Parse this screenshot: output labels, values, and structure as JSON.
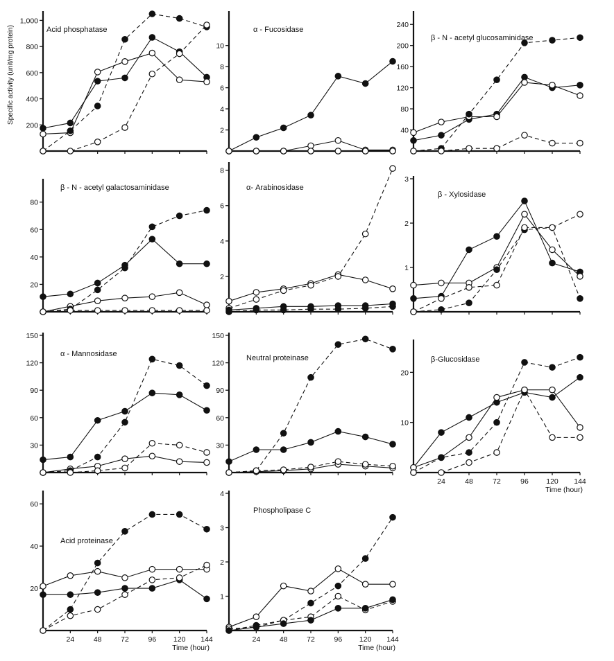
{
  "figure": {
    "ylabel": "Specific activity (unit/mg protein)",
    "xlabel": "Time (hour)"
  },
  "chart_data": [
    {
      "type": "line",
      "title": "Acid phosphatase",
      "x": [
        0,
        24,
        48,
        72,
        96,
        120,
        144
      ],
      "ylim": [
        0,
        1050
      ],
      "yticks": [
        200,
        400,
        600,
        800,
        1000
      ],
      "yticklabels": [
        "200",
        "400",
        "600",
        "800",
        "1,000"
      ],
      "xticks": [],
      "xticklabels": [],
      "series": [
        {
          "marker": "filled",
          "dash": false,
          "values": [
            175,
            215,
            535,
            560,
            870,
            760,
            565
          ]
        },
        {
          "marker": "open",
          "dash": false,
          "values": [
            130,
            140,
            605,
            685,
            750,
            545,
            530
          ]
        },
        {
          "marker": "filled",
          "dash": true,
          "values": [
            0,
            155,
            345,
            855,
            1050,
            1015,
            950
          ]
        },
        {
          "marker": "open",
          "dash": true,
          "values": [
            0,
            0,
            70,
            180,
            590,
            745,
            965
          ]
        }
      ]
    },
    {
      "type": "line",
      "title": "α - Fucosidase",
      "x": [
        0,
        24,
        48,
        72,
        96,
        120,
        144
      ],
      "ylim": [
        0,
        13
      ],
      "yticks": [
        2,
        4,
        6,
        8,
        10
      ],
      "yticklabels": [
        "2",
        "4",
        "6",
        "8",
        "10"
      ],
      "xticks": [],
      "xticklabels": [],
      "series": [
        {
          "marker": "filled",
          "dash": false,
          "values": [
            0,
            1.3,
            2.2,
            3.4,
            7.1,
            6.4,
            8.5
          ]
        },
        {
          "marker": "open",
          "dash": false,
          "values": [
            0,
            0,
            0,
            0.5,
            1.0,
            0.1,
            0.1
          ]
        },
        {
          "marker": "filled",
          "dash": true,
          "values": [
            0,
            0,
            0,
            0,
            0,
            0,
            0
          ]
        },
        {
          "marker": "open",
          "dash": true,
          "values": [
            0,
            0,
            0,
            0,
            0,
            0,
            0
          ]
        }
      ]
    },
    {
      "type": "line",
      "title": "β - N - acetyl glucosaminidase",
      "x": [
        0,
        24,
        48,
        72,
        96,
        120,
        144
      ],
      "ylim": [
        0,
        260
      ],
      "yticks": [
        40,
        80,
        120,
        160,
        200,
        240
      ],
      "yticklabels": [
        "40",
        "80",
        "120",
        "160",
        "200",
        "240"
      ],
      "xticks": [],
      "xticklabels": [],
      "series": [
        {
          "marker": "filled",
          "dash": false,
          "values": [
            20,
            30,
            60,
            70,
            140,
            120,
            125
          ]
        },
        {
          "marker": "open",
          "dash": false,
          "values": [
            35,
            55,
            65,
            65,
            130,
            125,
            105
          ]
        },
        {
          "marker": "filled",
          "dash": true,
          "values": [
            0,
            5,
            70,
            135,
            205,
            210,
            215
          ]
        },
        {
          "marker": "open",
          "dash": true,
          "values": [
            0,
            0,
            5,
            5,
            30,
            15,
            15
          ]
        }
      ]
    },
    {
      "type": "line",
      "title": "β - N - acetyl galactosaminidase",
      "x": [
        0,
        24,
        48,
        72,
        96,
        120,
        144
      ],
      "ylim": [
        0,
        95
      ],
      "yticks": [
        20,
        40,
        60,
        80
      ],
      "yticklabels": [
        "20",
        "40",
        "60",
        "80"
      ],
      "xticks": [],
      "xticklabels": [],
      "series": [
        {
          "marker": "filled",
          "dash": false,
          "values": [
            11,
            13,
            21,
            34,
            53,
            35,
            35
          ]
        },
        {
          "marker": "open",
          "dash": false,
          "values": [
            0,
            4,
            8,
            10,
            11,
            14,
            5
          ]
        },
        {
          "marker": "filled",
          "dash": true,
          "values": [
            0,
            2,
            16,
            32,
            62,
            70,
            74
          ]
        },
        {
          "marker": "open",
          "dash": true,
          "values": [
            0,
            1,
            1,
            1,
            1,
            1,
            1
          ]
        }
      ]
    },
    {
      "type": "line",
      "title": "α- Arabinosidase",
      "x": [
        0,
        24,
        48,
        72,
        96,
        120,
        144
      ],
      "ylim": [
        0,
        8.3
      ],
      "yticks": [
        2,
        4,
        6,
        8
      ],
      "yticklabels": [
        "2",
        "4",
        "6",
        "8"
      ],
      "xticks": [],
      "xticklabels": [],
      "series": [
        {
          "marker": "open",
          "dash": false,
          "values": [
            0.6,
            1.1,
            1.3,
            1.6,
            2.1,
            1.8,
            1.3
          ]
        },
        {
          "marker": "open",
          "dash": true,
          "values": [
            0.2,
            0.7,
            1.2,
            1.5,
            2.0,
            4.4,
            8.1
          ]
        },
        {
          "marker": "filled",
          "dash": false,
          "values": [
            0.1,
            0.2,
            0.3,
            0.3,
            0.35,
            0.35,
            0.45
          ]
        },
        {
          "marker": "filled",
          "dash": true,
          "values": [
            0,
            0.1,
            0.1,
            0.15,
            0.15,
            0.2,
            0.3
          ]
        }
      ]
    },
    {
      "type": "line",
      "title": "β - Xylosidase",
      "x": [
        0,
        24,
        48,
        72,
        96,
        120,
        144
      ],
      "ylim": [
        0,
        3
      ],
      "yticks": [
        1,
        2,
        3
      ],
      "yticklabels": [
        "1",
        "2",
        "3"
      ],
      "xticks": [],
      "xticklabels": [],
      "series": [
        {
          "marker": "filled",
          "dash": false,
          "values": [
            0.3,
            0.35,
            1.4,
            1.7,
            2.5,
            1.1,
            0.9
          ]
        },
        {
          "marker": "open",
          "dash": false,
          "values": [
            0.6,
            0.65,
            0.65,
            1.0,
            2.2,
            1.4,
            0.8
          ]
        },
        {
          "marker": "filled",
          "dash": true,
          "values": [
            0,
            0.05,
            0.2,
            0.95,
            1.85,
            1.9,
            0.3
          ]
        },
        {
          "marker": "open",
          "dash": true,
          "values": [
            0,
            0.3,
            0.55,
            0.6,
            1.9,
            1.9,
            2.2
          ]
        }
      ]
    },
    {
      "type": "line",
      "title": "α - Mannosidase",
      "x": [
        0,
        24,
        48,
        72,
        96,
        120,
        144
      ],
      "ylim": [
        0,
        150
      ],
      "yticks": [
        30,
        60,
        90,
        120,
        150
      ],
      "yticklabels": [
        "30",
        "60",
        "90",
        "120",
        "150"
      ],
      "xticks": [],
      "xticklabels": [],
      "series": [
        {
          "marker": "filled",
          "dash": false,
          "values": [
            14,
            17,
            57,
            67,
            87,
            85,
            68
          ]
        },
        {
          "marker": "open",
          "dash": false,
          "values": [
            0,
            4,
            7,
            15,
            18,
            12,
            11
          ]
        },
        {
          "marker": "filled",
          "dash": true,
          "values": [
            0,
            2,
            17,
            55,
            124,
            117,
            95
          ]
        },
        {
          "marker": "open",
          "dash": true,
          "values": [
            0,
            0,
            2,
            5,
            32,
            30,
            22
          ]
        }
      ]
    },
    {
      "type": "line",
      "title": "Neutral proteinase",
      "x": [
        0,
        24,
        48,
        72,
        96,
        120,
        144
      ],
      "ylim": [
        0,
        150
      ],
      "yticks": [
        30,
        60,
        90,
        120,
        150
      ],
      "yticklabels": [
        "30",
        "60",
        "90",
        "120",
        "150"
      ],
      "xticks": [],
      "xticklabels": [],
      "series": [
        {
          "marker": "filled",
          "dash": false,
          "values": [
            12,
            25,
            25,
            33,
            45,
            39,
            31
          ]
        },
        {
          "marker": "filled",
          "dash": true,
          "values": [
            0,
            2,
            43,
            104,
            140,
            146,
            135
          ]
        },
        {
          "marker": "open",
          "dash": false,
          "values": [
            0,
            1,
            2,
            4,
            9,
            7,
            5
          ]
        },
        {
          "marker": "open",
          "dash": true,
          "values": [
            0,
            2,
            3,
            6,
            12,
            9,
            7
          ]
        }
      ]
    },
    {
      "type": "line",
      "title": "β-Glucosidase",
      "x": [
        0,
        24,
        48,
        72,
        96,
        120,
        144
      ],
      "ylim": [
        0,
        26
      ],
      "yticks": [
        10,
        20
      ],
      "yticklabels": [
        "10",
        "20"
      ],
      "xticks": [
        24,
        48,
        72,
        96,
        120,
        144
      ],
      "xticklabels": [
        "24",
        "48",
        "72",
        "96",
        "120",
        "144"
      ],
      "xlabel": "Time (hour)",
      "series": [
        {
          "marker": "filled",
          "dash": false,
          "values": [
            1,
            8,
            11,
            14,
            16,
            15,
            19
          ]
        },
        {
          "marker": "open",
          "dash": false,
          "values": [
            1,
            3,
            7,
            15,
            16.5,
            16.5,
            9
          ]
        },
        {
          "marker": "filled",
          "dash": true,
          "values": [
            0,
            3,
            4,
            10,
            22,
            21,
            23
          ]
        },
        {
          "marker": "open",
          "dash": true,
          "values": [
            0,
            0,
            2,
            4,
            16.5,
            7,
            7
          ]
        }
      ]
    },
    {
      "type": "line",
      "title": "Acid proteinase",
      "x": [
        0,
        24,
        48,
        72,
        96,
        120,
        144
      ],
      "ylim": [
        0,
        65
      ],
      "yticks": [
        20,
        40,
        60
      ],
      "yticklabels": [
        "20",
        "40",
        "60"
      ],
      "xticks": [
        24,
        48,
        72,
        96,
        120,
        144
      ],
      "xticklabels": [
        "24",
        "48",
        "72",
        "96",
        "120",
        "144"
      ],
      "xlabel": "Time (hour)",
      "series": [
        {
          "marker": "filled",
          "dash": false,
          "values": [
            17,
            17,
            18,
            20,
            20,
            24,
            15
          ]
        },
        {
          "marker": "open",
          "dash": false,
          "values": [
            21,
            26,
            28,
            25,
            29,
            29,
            29
          ]
        },
        {
          "marker": "filled",
          "dash": true,
          "values": [
            0,
            10,
            32,
            47,
            55,
            55,
            48
          ]
        },
        {
          "marker": "open",
          "dash": true,
          "values": [
            0,
            7,
            10,
            17,
            24,
            25,
            31
          ]
        }
      ]
    },
    {
      "type": "line",
      "title": "Phospholipase C",
      "x": [
        0,
        24,
        48,
        72,
        96,
        120,
        144
      ],
      "ylim": [
        0,
        4
      ],
      "yticks": [
        1,
        2,
        3,
        4
      ],
      "yticklabels": [
        "1",
        "2",
        "3",
        "4"
      ],
      "xticks": [
        24,
        48,
        72,
        96,
        120,
        144
      ],
      "xticklabels": [
        "24",
        "48",
        "72",
        "96",
        "120",
        "144"
      ],
      "xlabel": "Time (hour)",
      "series": [
        {
          "marker": "open",
          "dash": false,
          "values": [
            0.1,
            0.4,
            1.3,
            1.15,
            1.8,
            1.35,
            1.35
          ]
        },
        {
          "marker": "filled",
          "dash": true,
          "values": [
            0,
            0.15,
            0.3,
            0.8,
            1.3,
            2.1,
            3.3
          ]
        },
        {
          "marker": "open",
          "dash": true,
          "values": [
            0.05,
            0.1,
            0.3,
            0.4,
            1.0,
            0.6,
            0.85
          ]
        },
        {
          "marker": "filled",
          "dash": false,
          "values": [
            0,
            0.1,
            0.2,
            0.3,
            0.65,
            0.65,
            0.9
          ]
        }
      ]
    }
  ]
}
